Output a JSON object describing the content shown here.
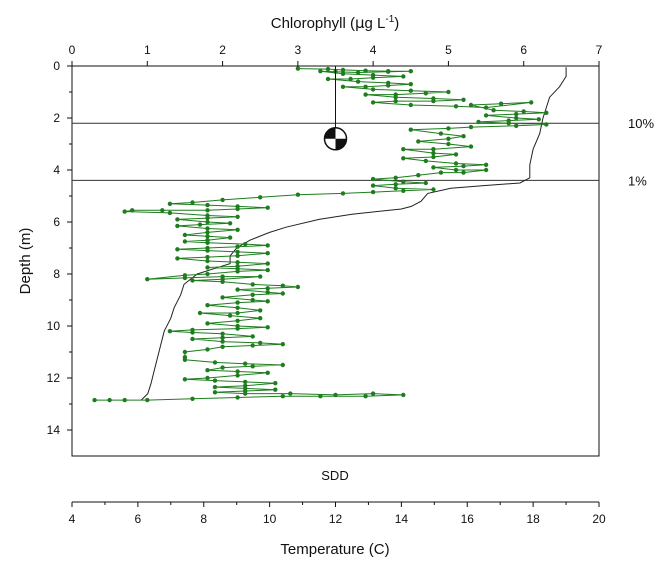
{
  "chart_data": {
    "type": "line",
    "top_axis": {
      "title": "Chlorophyll",
      "title_unit_prefix": "(",
      "title_unit_mu": "μ",
      "title_unit_g": "g L",
      "title_unit_exp": "-1",
      "title_unit_suffix": ")",
      "range": [
        0,
        7
      ],
      "ticks": [
        "0",
        "1",
        "2",
        "3",
        "4",
        "5",
        "6",
        "7"
      ]
    },
    "left_axis": {
      "title": "Depth (m)",
      "range": [
        0,
        15
      ],
      "inverted": true,
      "ticks": [
        "0",
        "2",
        "4",
        "6",
        "8",
        "10",
        "12",
        "14"
      ]
    },
    "bottom_axis": {
      "title": "Temperature (C)",
      "range": [
        4,
        20
      ],
      "ticks": [
        "4",
        "6",
        "8",
        "10",
        "12",
        "14",
        "16",
        "18",
        "20"
      ]
    },
    "reference_lines": [
      {
        "label": "10%",
        "depth": 2.2
      },
      {
        "label": "1%",
        "depth": 4.4
      }
    ],
    "secchi": {
      "label": "SDD",
      "chlorophyll_x": 3.5,
      "depth": 2.8
    },
    "chlorophyll_color": "#1e7d1e",
    "temperature_color": "#222222",
    "chlorophyll_series": {
      "name": "Chlorophyll",
      "points": [
        [
          3.0,
          0.1
        ],
        [
          3.4,
          0.12
        ],
        [
          3.6,
          0.15
        ],
        [
          3.9,
          0.18
        ],
        [
          4.2,
          0.2
        ],
        [
          4.5,
          0.2
        ],
        [
          4.2,
          0.22
        ],
        [
          3.8,
          0.25
        ],
        [
          3.5,
          0.22
        ],
        [
          3.3,
          0.2
        ],
        [
          3.6,
          0.3
        ],
        [
          4.0,
          0.35
        ],
        [
          4.4,
          0.4
        ],
        [
          4.0,
          0.45
        ],
        [
          3.7,
          0.5
        ],
        [
          3.4,
          0.5
        ],
        [
          3.8,
          0.6
        ],
        [
          4.2,
          0.65
        ],
        [
          4.5,
          0.7
        ],
        [
          4.2,
          0.75
        ],
        [
          3.9,
          0.8
        ],
        [
          3.6,
          0.8
        ],
        [
          4.0,
          0.9
        ],
        [
          4.5,
          0.95
        ],
        [
          5.0,
          1.0
        ],
        [
          4.7,
          1.05
        ],
        [
          4.3,
          1.1
        ],
        [
          3.9,
          1.1
        ],
        [
          4.3,
          1.2
        ],
        [
          4.8,
          1.25
        ],
        [
          5.2,
          1.3
        ],
        [
          4.8,
          1.35
        ],
        [
          4.3,
          1.35
        ],
        [
          4.0,
          1.4
        ],
        [
          4.5,
          1.5
        ],
        [
          5.1,
          1.55
        ],
        [
          5.5,
          1.6
        ],
        [
          6.1,
          1.4
        ],
        [
          5.7,
          1.45
        ],
        [
          5.3,
          1.5
        ],
        [
          5.6,
          1.7
        ],
        [
          6.0,
          1.75
        ],
        [
          6.3,
          1.8
        ],
        [
          5.9,
          1.85
        ],
        [
          5.5,
          1.9
        ],
        [
          5.9,
          2.0
        ],
        [
          6.2,
          2.05
        ],
        [
          5.8,
          2.1
        ],
        [
          5.4,
          2.15
        ],
        [
          5.8,
          2.2
        ],
        [
          6.3,
          2.25
        ],
        [
          5.9,
          2.3
        ],
        [
          5.3,
          2.35
        ],
        [
          5.0,
          2.4
        ],
        [
          4.5,
          2.45
        ],
        [
          4.9,
          2.6
        ],
        [
          5.2,
          2.7
        ],
        [
          5.0,
          2.8
        ],
        [
          4.6,
          2.9
        ],
        [
          5.0,
          3.0
        ],
        [
          5.3,
          3.1
        ],
        [
          4.8,
          3.2
        ],
        [
          4.4,
          3.2
        ],
        [
          4.8,
          3.35
        ],
        [
          5.1,
          3.4
        ],
        [
          4.8,
          3.5
        ],
        [
          4.4,
          3.55
        ],
        [
          4.7,
          3.65
        ],
        [
          5.1,
          3.75
        ],
        [
          5.5,
          3.8
        ],
        [
          5.2,
          3.85
        ],
        [
          4.8,
          3.9
        ],
        [
          5.1,
          4.0
        ],
        [
          5.5,
          4.0
        ],
        [
          5.2,
          4.1
        ],
        [
          4.9,
          4.1
        ],
        [
          4.6,
          4.2
        ],
        [
          4.3,
          4.3
        ],
        [
          4.0,
          4.35
        ],
        [
          4.4,
          4.45
        ],
        [
          4.7,
          4.5
        ],
        [
          4.3,
          4.55
        ],
        [
          4.0,
          4.6
        ],
        [
          4.3,
          4.7
        ],
        [
          4.8,
          4.75
        ],
        [
          4.4,
          4.8
        ],
        [
          4.0,
          4.85
        ],
        [
          3.6,
          4.9
        ],
        [
          3.0,
          4.95
        ],
        [
          2.5,
          5.05
        ],
        [
          2.0,
          5.15
        ],
        [
          1.6,
          5.25
        ],
        [
          1.3,
          5.3
        ],
        [
          1.8,
          5.35
        ],
        [
          2.2,
          5.4
        ],
        [
          2.6,
          5.45
        ],
        [
          2.2,
          5.5
        ],
        [
          1.8,
          5.55
        ],
        [
          1.2,
          5.55
        ],
        [
          0.8,
          5.55
        ],
        [
          0.7,
          5.6
        ],
        [
          1.3,
          5.65
        ],
        [
          1.8,
          5.75
        ],
        [
          2.2,
          5.8
        ],
        [
          1.8,
          5.85
        ],
        [
          1.4,
          5.9
        ],
        [
          1.8,
          6.0
        ],
        [
          2.1,
          6.05
        ],
        [
          1.7,
          6.1
        ],
        [
          1.4,
          6.15
        ],
        [
          1.8,
          6.25
        ],
        [
          2.2,
          6.3
        ],
        [
          1.8,
          6.4
        ],
        [
          1.5,
          6.5
        ],
        [
          1.8,
          6.55
        ],
        [
          2.1,
          6.6
        ],
        [
          1.8,
          6.7
        ],
        [
          1.5,
          6.75
        ],
        [
          1.8,
          6.8
        ],
        [
          2.3,
          6.85
        ],
        [
          2.6,
          6.9
        ],
        [
          2.2,
          6.95
        ],
        [
          1.8,
          7.0
        ],
        [
          1.4,
          7.05
        ],
        [
          1.8,
          7.1
        ],
        [
          2.2,
          7.15
        ],
        [
          2.6,
          7.2
        ],
        [
          2.2,
          7.3
        ],
        [
          1.8,
          7.35
        ],
        [
          1.4,
          7.4
        ],
        [
          1.8,
          7.5
        ],
        [
          2.2,
          7.55
        ],
        [
          2.6,
          7.6
        ],
        [
          2.2,
          7.7
        ],
        [
          1.8,
          7.75
        ],
        [
          2.2,
          7.8
        ],
        [
          2.6,
          7.85
        ],
        [
          2.2,
          7.9
        ],
        [
          1.8,
          8.0
        ],
        [
          1.5,
          8.05
        ],
        [
          1.0,
          8.2
        ],
        [
          1.5,
          8.15
        ],
        [
          2.0,
          8.1
        ],
        [
          2.5,
          8.1
        ],
        [
          2.0,
          8.2
        ],
        [
          1.6,
          8.25
        ],
        [
          2.0,
          8.3
        ],
        [
          2.4,
          8.4
        ],
        [
          2.8,
          8.45
        ],
        [
          3.0,
          8.5
        ],
        [
          2.6,
          8.55
        ],
        [
          2.2,
          8.6
        ],
        [
          2.6,
          8.7
        ],
        [
          2.8,
          8.75
        ],
        [
          2.4,
          8.8
        ],
        [
          2.0,
          8.9
        ],
        [
          2.4,
          9.0
        ],
        [
          2.6,
          9.05
        ],
        [
          2.2,
          9.1
        ],
        [
          1.8,
          9.2
        ],
        [
          2.2,
          9.3
        ],
        [
          2.5,
          9.4
        ],
        [
          2.2,
          9.5
        ],
        [
          1.7,
          9.5
        ],
        [
          2.1,
          9.6
        ],
        [
          2.5,
          9.7
        ],
        [
          2.2,
          9.8
        ],
        [
          1.8,
          9.9
        ],
        [
          2.2,
          10.0
        ],
        [
          2.6,
          10.05
        ],
        [
          2.2,
          10.1
        ],
        [
          1.6,
          10.15
        ],
        [
          1.3,
          10.2
        ],
        [
          1.6,
          10.25
        ],
        [
          2.0,
          10.3
        ],
        [
          2.4,
          10.4
        ],
        [
          2.0,
          10.45
        ],
        [
          1.6,
          10.5
        ],
        [
          2.0,
          10.6
        ],
        [
          2.5,
          10.65
        ],
        [
          2.8,
          10.7
        ],
        [
          2.4,
          10.75
        ],
        [
          2.0,
          10.8
        ],
        [
          1.8,
          10.9
        ],
        [
          1.5,
          11.0
        ],
        [
          1.5,
          11.2
        ],
        [
          1.5,
          11.3
        ],
        [
          1.9,
          11.4
        ],
        [
          2.3,
          11.45
        ],
        [
          2.8,
          11.5
        ],
        [
          2.4,
          11.55
        ],
        [
          2.0,
          11.6
        ],
        [
          1.8,
          11.7
        ],
        [
          2.2,
          11.75
        ],
        [
          2.6,
          11.8
        ],
        [
          2.2,
          11.9
        ],
        [
          1.8,
          12.0
        ],
        [
          1.5,
          12.05
        ],
        [
          1.9,
          12.1
        ],
        [
          2.3,
          12.15
        ],
        [
          2.7,
          12.2
        ],
        [
          2.3,
          12.3
        ],
        [
          1.9,
          12.35
        ],
        [
          2.3,
          12.4
        ],
        [
          2.7,
          12.45
        ],
        [
          2.3,
          12.5
        ],
        [
          1.9,
          12.55
        ],
        [
          2.3,
          12.6
        ],
        [
          2.9,
          12.6
        ],
        [
          3.5,
          12.65
        ],
        [
          4.0,
          12.6
        ],
        [
          4.4,
          12.65
        ],
        [
          3.9,
          12.7
        ],
        [
          3.3,
          12.7
        ],
        [
          2.8,
          12.7
        ],
        [
          2.2,
          12.75
        ],
        [
          1.6,
          12.8
        ],
        [
          1.0,
          12.85
        ],
        [
          0.7,
          12.85
        ],
        [
          0.5,
          12.85
        ],
        [
          0.3,
          12.85
        ]
      ]
    },
    "temperature_series": {
      "name": "Temperature",
      "points": [
        [
          19.0,
          0.05
        ],
        [
          19.0,
          0.4
        ],
        [
          18.8,
          0.8
        ],
        [
          18.5,
          1.2
        ],
        [
          18.4,
          1.6
        ],
        [
          18.3,
          2.0
        ],
        [
          18.2,
          2.6
        ],
        [
          18.0,
          3.2
        ],
        [
          17.9,
          3.8
        ],
        [
          17.9,
          4.3
        ],
        [
          17.6,
          4.5
        ],
        [
          16.5,
          4.6
        ],
        [
          15.5,
          4.7
        ],
        [
          14.8,
          4.9
        ],
        [
          14.6,
          5.2
        ],
        [
          14.3,
          5.4
        ],
        [
          14.0,
          5.5
        ],
        [
          12.5,
          5.7
        ],
        [
          11.5,
          5.9
        ],
        [
          10.5,
          6.2
        ],
        [
          10.0,
          6.4
        ],
        [
          9.4,
          6.7
        ],
        [
          9.0,
          7.0
        ],
        [
          8.8,
          7.3
        ],
        [
          8.8,
          7.6
        ],
        [
          8.3,
          7.8
        ],
        [
          7.8,
          8.0
        ],
        [
          7.4,
          8.4
        ],
        [
          7.3,
          8.8
        ],
        [
          7.1,
          9.3
        ],
        [
          7.0,
          9.7
        ],
        [
          6.8,
          10.2
        ],
        [
          6.7,
          10.7
        ],
        [
          6.6,
          11.2
        ],
        [
          6.5,
          11.7
        ],
        [
          6.4,
          12.2
        ],
        [
          6.3,
          12.6
        ],
        [
          6.1,
          12.85
        ]
      ]
    }
  }
}
